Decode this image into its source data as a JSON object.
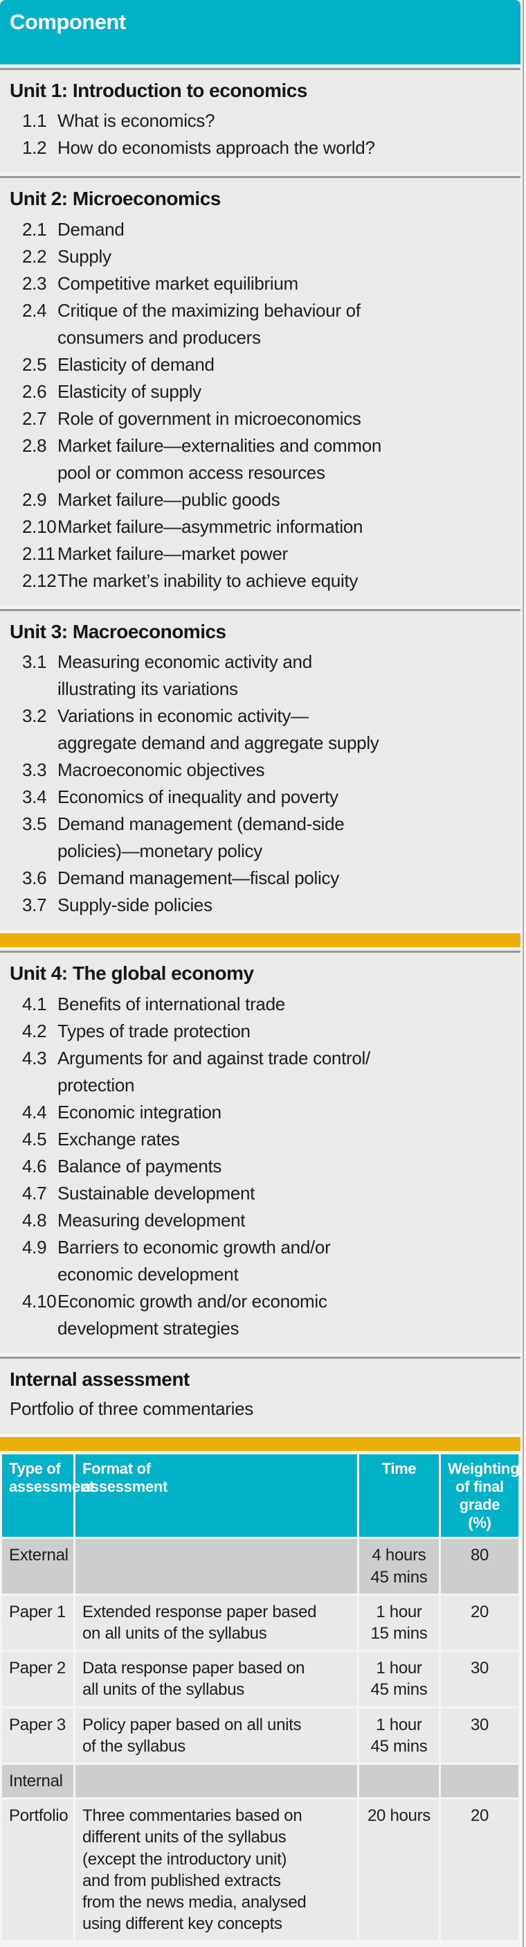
{
  "header": {
    "title": "Component"
  },
  "sections": [
    {
      "id": "unit-1",
      "title": "Unit 1: Introduction to economics",
      "items": [
        {
          "num": "1.1",
          "text": "What is economics?"
        },
        {
          "num": "1.2",
          "text": "How do economists approach the world?"
        }
      ]
    },
    {
      "id": "unit-2",
      "title": "Unit 2: Microeconomics",
      "items": [
        {
          "num": "2.1",
          "text": "Demand"
        },
        {
          "num": "2.2",
          "text": "Supply"
        },
        {
          "num": "2.3",
          "text": "Competitive market equilibrium"
        },
        {
          "num": "2.4",
          "text": "Critique of the maximizing behaviour of\nconsumers and producers"
        },
        {
          "num": "2.5",
          "text": "Elasticity of demand"
        },
        {
          "num": "2.6",
          "text": "Elasticity of supply"
        },
        {
          "num": "2.7",
          "text": "Role of government in microeconomics"
        },
        {
          "num": "2.8",
          "text": "Market failure—externalities and common\npool or common access resources"
        },
        {
          "num": "2.9",
          "text": "Market failure—public goods"
        },
        {
          "num": "2.10",
          "text": "Market failure—asymmetric information"
        },
        {
          "num": "2.11",
          "text": "Market failure—market power"
        },
        {
          "num": "2.12",
          "text": "The market’s inability to achieve equity"
        }
      ]
    },
    {
      "id": "unit-3",
      "title": "Unit 3: Macroeconomics",
      "divider_after": true,
      "items": [
        {
          "num": "3.1",
          "text": "Measuring economic activity and\nillustrating its variations"
        },
        {
          "num": "3.2",
          "text": "Variations in economic activity—\naggregate demand and aggregate supply"
        },
        {
          "num": "3.3",
          "text": "Macroeconomic objectives"
        },
        {
          "num": "3.4",
          "text": "Economics of inequality and poverty"
        },
        {
          "num": "3.5",
          "text": "Demand management (demand-side\npolicies)—monetary policy"
        },
        {
          "num": "3.6",
          "text": "Demand management—fiscal policy"
        },
        {
          "num": "3.7",
          "text": "Supply-side policies"
        }
      ]
    },
    {
      "id": "unit-4",
      "title": "Unit 4: The global economy",
      "items": [
        {
          "num": "4.1",
          "text": "Benefits of international trade"
        },
        {
          "num": "4.2",
          "text": "Types of trade protection"
        },
        {
          "num": "4.3",
          "text": "Arguments for and against trade control/\nprotection"
        },
        {
          "num": "4.4",
          "text": "Economic integration"
        },
        {
          "num": "4.5",
          "text": "Exchange rates"
        },
        {
          "num": "4.6",
          "text": "Balance of payments"
        },
        {
          "num": "4.7",
          "text": "Sustainable development"
        },
        {
          "num": "4.8",
          "text": "Measuring development"
        },
        {
          "num": "4.9",
          "text": "Barriers to economic growth and/or\neconomic development"
        },
        {
          "num": "4.10",
          "text": "Economic growth and/or economic\ndevelopment strategies"
        }
      ]
    },
    {
      "id": "internal-assessment",
      "title": "Internal assessment",
      "subtitle": "Portfolio of three commentaries",
      "divider_after": true,
      "items": []
    }
  ],
  "table": {
    "headers": [
      "Type of\nassessment",
      "Format of\nassessment",
      "Time",
      "Weighting\nof final\ngrade (%)"
    ],
    "rows": [
      {
        "type": "External",
        "format": "",
        "time": "4 hours\n45 mins",
        "weighting": "80",
        "variant": "dark"
      },
      {
        "type": "Paper 1",
        "format": "Extended response paper based\non all units of the syllabus",
        "time": "1 hour\n15 mins",
        "weighting": "20",
        "variant": "light"
      },
      {
        "type": "Paper 2",
        "format": "Data response paper based on\nall units of the syllabus",
        "time": "1 hour\n45 mins",
        "weighting": "30",
        "variant": "light"
      },
      {
        "type": "Paper 3",
        "format": "Policy paper based on all units\nof the syllabus",
        "time": "1 hour\n45 mins",
        "weighting": "30",
        "variant": "light"
      },
      {
        "type": "Internal",
        "format": "",
        "time": "",
        "weighting": "",
        "variant": "dark"
      },
      {
        "type": "Portfolio",
        "format": "Three commentaries based on\ndifferent units of the syllabus\n(except the introductory unit)\nand from published extracts\nfrom the news media, analysed\nusing different key concepts",
        "time": "20 hours",
        "weighting": "20",
        "variant": "light"
      }
    ]
  },
  "colors": {
    "teal": "#00b1c8",
    "amber": "#edaf05",
    "section_bg": "#eaeae8",
    "row_light": "#e9e9e7",
    "row_dark": "#cdcdcb",
    "text": "#1d1d1b",
    "header_text": "#ffffff"
  }
}
